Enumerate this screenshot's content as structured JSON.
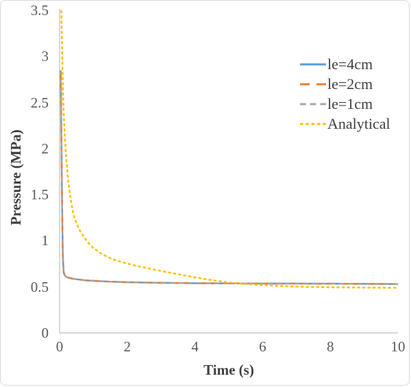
{
  "window": {
    "background": "#ffffff",
    "frame_border_color": "#d9d9d9"
  },
  "chart_data": {
    "type": "line",
    "title": "",
    "xlabel": "Time (s)",
    "ylabel": "Pressure (MPa)",
    "xlim": [
      0,
      10
    ],
    "ylim": [
      0,
      3.5
    ],
    "xticks": [
      0,
      2,
      4,
      6,
      8,
      10
    ],
    "yticks": [
      0,
      0.5,
      1,
      1.5,
      2,
      2.5,
      3,
      3.5
    ],
    "grid": false,
    "legend_position": "inside-upper-right",
    "axis_line_color": "#bfbfbf",
    "tick_label_color": "#595959",
    "axis_title_color": "#404040",
    "legend_text_color": "#404040",
    "series": [
      {
        "name": "le=4cm",
        "color": "#5B9BD5",
        "dash": "solid",
        "x": [
          0.03,
          0.04,
          0.05,
          0.06,
          0.07,
          0.08,
          0.09,
          0.1,
          0.12,
          0.15,
          0.2,
          0.25,
          0.3,
          0.4,
          0.5,
          0.75,
          1,
          1.25,
          1.5,
          2,
          2.5,
          3,
          3.5,
          4,
          4.5,
          5,
          5.5,
          6,
          6.5,
          7,
          7.5,
          8,
          8.5,
          9,
          9.5,
          10
        ],
        "y": [
          2.85,
          2.55,
          2.2,
          1.85,
          1.5,
          1.2,
          0.97,
          0.8,
          0.66,
          0.625,
          0.607,
          0.6,
          0.595,
          0.587,
          0.582,
          0.571,
          0.565,
          0.56,
          0.556,
          0.55,
          0.546,
          0.543,
          0.541,
          0.539,
          0.538,
          0.537,
          0.536,
          0.536,
          0.535,
          0.535,
          0.534,
          0.534,
          0.533,
          0.532,
          0.531,
          0.53
        ]
      },
      {
        "name": "le=2cm",
        "color": "#ED7D31",
        "dash": "long-dash",
        "x": [
          0.03,
          0.04,
          0.05,
          0.06,
          0.07,
          0.08,
          0.09,
          0.1,
          0.12,
          0.15,
          0.2,
          0.25,
          0.3,
          0.4,
          0.5,
          0.75,
          1,
          1.25,
          1.5,
          2,
          2.5,
          3,
          3.5,
          4,
          4.5,
          5,
          5.5,
          6,
          6.5,
          7,
          7.5,
          8,
          8.5,
          9,
          9.5,
          10
        ],
        "y": [
          2.85,
          2.55,
          2.2,
          1.85,
          1.5,
          1.2,
          0.97,
          0.8,
          0.66,
          0.625,
          0.607,
          0.6,
          0.595,
          0.587,
          0.582,
          0.571,
          0.565,
          0.56,
          0.556,
          0.55,
          0.546,
          0.543,
          0.541,
          0.539,
          0.538,
          0.537,
          0.536,
          0.536,
          0.535,
          0.535,
          0.534,
          0.534,
          0.533,
          0.532,
          0.531,
          0.53
        ]
      },
      {
        "name": "le=1cm",
        "color": "#A5A5A5",
        "dash": "dash",
        "x": [
          0.03,
          0.04,
          0.05,
          0.06,
          0.07,
          0.08,
          0.09,
          0.1,
          0.12,
          0.15,
          0.2,
          0.25,
          0.3,
          0.4,
          0.5,
          0.75,
          1,
          1.25,
          1.5,
          2,
          2.5,
          3,
          3.5,
          4,
          4.5,
          5,
          5.5,
          6,
          6.5,
          7,
          7.5,
          8,
          8.5,
          9,
          9.5,
          10
        ],
        "y": [
          2.85,
          2.55,
          2.2,
          1.85,
          1.5,
          1.2,
          0.97,
          0.8,
          0.66,
          0.625,
          0.607,
          0.6,
          0.595,
          0.587,
          0.582,
          0.571,
          0.565,
          0.56,
          0.556,
          0.55,
          0.546,
          0.543,
          0.541,
          0.539,
          0.538,
          0.537,
          0.536,
          0.536,
          0.535,
          0.535,
          0.534,
          0.534,
          0.533,
          0.532,
          0.531,
          0.53
        ]
      },
      {
        "name": "Analytical",
        "color": "#FFC000",
        "dash": "short-dash",
        "x": [
          0.05,
          0.06,
          0.08,
          0.1,
          0.12,
          0.15,
          0.18,
          0.2,
          0.25,
          0.3,
          0.35,
          0.4,
          0.45,
          0.5,
          0.6,
          0.7,
          0.8,
          0.9,
          1,
          1.25,
          1.5,
          1.75,
          2,
          2.25,
          2.5,
          2.75,
          3,
          3.25,
          3.5,
          3.75,
          4,
          4.25,
          4.5,
          4.75,
          5,
          5.25,
          5.5,
          5.75,
          6,
          6.5,
          7,
          7.5,
          8,
          8.5,
          9,
          9.5,
          10
        ],
        "y": [
          3.5,
          3.3,
          2.95,
          2.6,
          2.4,
          2.15,
          1.98,
          1.88,
          1.67,
          1.52,
          1.4,
          1.3,
          1.24,
          1.19,
          1.11,
          1.05,
          1.0,
          0.955,
          0.92,
          0.855,
          0.81,
          0.778,
          0.752,
          0.73,
          0.71,
          0.69,
          0.672,
          0.654,
          0.637,
          0.62,
          0.603,
          0.587,
          0.573,
          0.56,
          0.548,
          0.539,
          0.531,
          0.524,
          0.518,
          0.509,
          0.502,
          0.498,
          0.495,
          0.493,
          0.491,
          0.49,
          0.489
        ]
      }
    ]
  }
}
